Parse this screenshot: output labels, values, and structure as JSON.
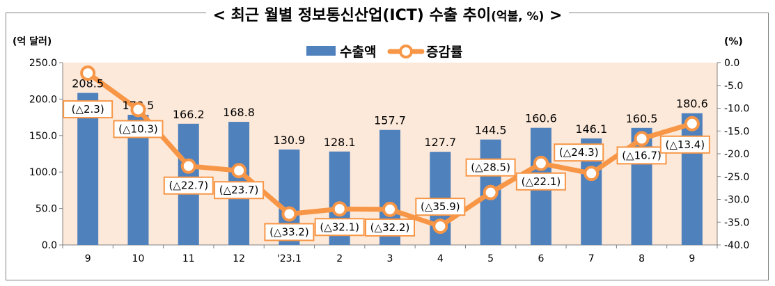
{
  "title": {
    "main": "< 최근 월별 정보통신산업(ICT) 수출 추이",
    "unit": "(억불, %)",
    "tail": " >"
  },
  "colors": {
    "bar": "#4f81bd",
    "line": "#f79646",
    "plot_bg": "#fde9d9",
    "marker_fill": "#ffffff"
  },
  "chart_data": {
    "type": "bar",
    "title": "< 최근 월별 정보통신산업(ICT) 수출 추이(억불, %) >",
    "categories": [
      "9",
      "10",
      "11",
      "12",
      "'23.1",
      "2",
      "3",
      "4",
      "5",
      "6",
      "7",
      "8",
      "9"
    ],
    "ylabel_left": "(억 달러)",
    "ylabel_right": "(%)",
    "ylim_left": [
      0,
      250
    ],
    "yticks_left": [
      "0.0",
      "50.0",
      "100.0",
      "150.0",
      "200.0",
      "250.0"
    ],
    "ylim_right": [
      -40,
      0
    ],
    "yticks_right": [
      "0.0",
      "-5.0",
      "-10.0",
      "-15.0",
      "-20.0",
      "-25.0",
      "-30.0",
      "-35.0",
      "-40.0"
    ],
    "legend_position": "top-center",
    "series": [
      {
        "name": "수출액",
        "type": "bar",
        "axis": "left",
        "values": [
          208.5,
          178.5,
          166.2,
          168.8,
          130.9,
          128.1,
          157.7,
          127.7,
          144.5,
          160.6,
          146.1,
          160.5,
          180.6
        ],
        "labels": [
          "208.5",
          "178.5",
          "166.2",
          "168.8",
          "130.9",
          "128.1",
          "157.7",
          "127.7",
          "144.5",
          "160.6",
          "146.1",
          "160.5",
          "180.6"
        ]
      },
      {
        "name": "증감률",
        "type": "line",
        "axis": "right",
        "values": [
          -2.3,
          -10.3,
          -22.7,
          -23.7,
          -33.2,
          -32.1,
          -32.2,
          -35.9,
          -28.5,
          -22.1,
          -24.3,
          -16.7,
          -13.4
        ],
        "labels": [
          "(△2.3)",
          "(△10.3)",
          "(△22.7)",
          "(△23.7)",
          "(△33.2)",
          "(△32.1)",
          "(△32.2)",
          "(△35.9)",
          "(△28.5)",
          "(△22.1)",
          "(△24.3)",
          "(△16.7)",
          "(△13.4)"
        ]
      }
    ]
  }
}
